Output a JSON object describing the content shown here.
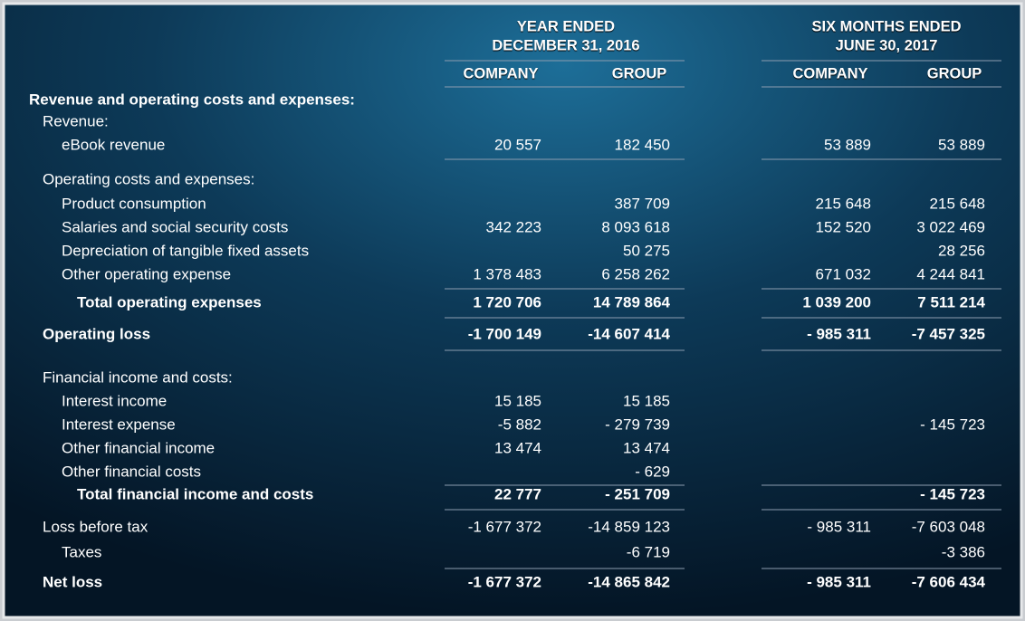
{
  "header": {
    "groups": [
      {
        "lines": [
          "YEAR ENDED",
          "DECEMBER 31, 2016"
        ],
        "columns": [
          "COMPANY",
          "GROUP"
        ]
      },
      {
        "lines": [
          "SIX MONTHS ENDED",
          "JUNE 30, 2017"
        ],
        "columns": [
          "COMPANY",
          "GROUP"
        ]
      }
    ]
  },
  "table": {
    "rows": [
      {
        "label": "Revenue and operating costs and expenses:"
      },
      {
        "label": "Revenue:"
      },
      {
        "label": "eBook revenue",
        "values": [
          "20 557",
          "182 450",
          "53 889",
          "53 889"
        ]
      },
      {
        "label": "Operating costs and expenses:"
      },
      {
        "label": "Product consumption",
        "values": [
          null,
          "387 709",
          "215 648",
          "215 648"
        ]
      },
      {
        "label": "Salaries and social security costs",
        "values": [
          "342 223",
          "8 093 618",
          "152 520",
          "3 022 469"
        ]
      },
      {
        "label": "Depreciation of tangible fixed assets",
        "values": [
          null,
          "50 275",
          null,
          "28 256"
        ]
      },
      {
        "label": "Other operating expense",
        "values": [
          "1 378 483",
          "6 258 262",
          "671 032",
          "4 244 841"
        ]
      },
      {
        "label": "Total operating expenses",
        "values": [
          "1 720 706",
          "14 789 864",
          "1 039 200",
          "7 511 214"
        ]
      },
      {
        "label": "Operating loss",
        "values": [
          "-1 700 149",
          "-14 607 414",
          "- 985 311",
          "-7 457 325"
        ]
      },
      {
        "label": "Financial income and costs:"
      },
      {
        "label": "Interest income",
        "values": [
          "15 185",
          "15 185",
          null,
          null
        ]
      },
      {
        "label": "Interest expense",
        "values": [
          "-5 882",
          "- 279 739",
          null,
          "- 145 723"
        ]
      },
      {
        "label": "Other financial income",
        "values": [
          "13 474",
          "13 474",
          null,
          null
        ]
      },
      {
        "label": "Other financial costs",
        "values": [
          null,
          "- 629",
          null,
          null
        ]
      },
      {
        "label": "Total financial income and costs",
        "values": [
          "22 777",
          "- 251 709",
          null,
          "- 145 723"
        ]
      },
      {
        "label": "Loss before tax",
        "values": [
          "-1 677 372",
          "-14 859 123",
          "- 985 311",
          "-7 603 048"
        ]
      },
      {
        "label": "Taxes",
        "values": [
          null,
          "-6 719",
          null,
          "-3 386"
        ]
      },
      {
        "label": "Net loss",
        "values": [
          "-1 677 372",
          "-14 865 842",
          "- 985 311",
          "-7 606 434"
        ]
      }
    ]
  }
}
